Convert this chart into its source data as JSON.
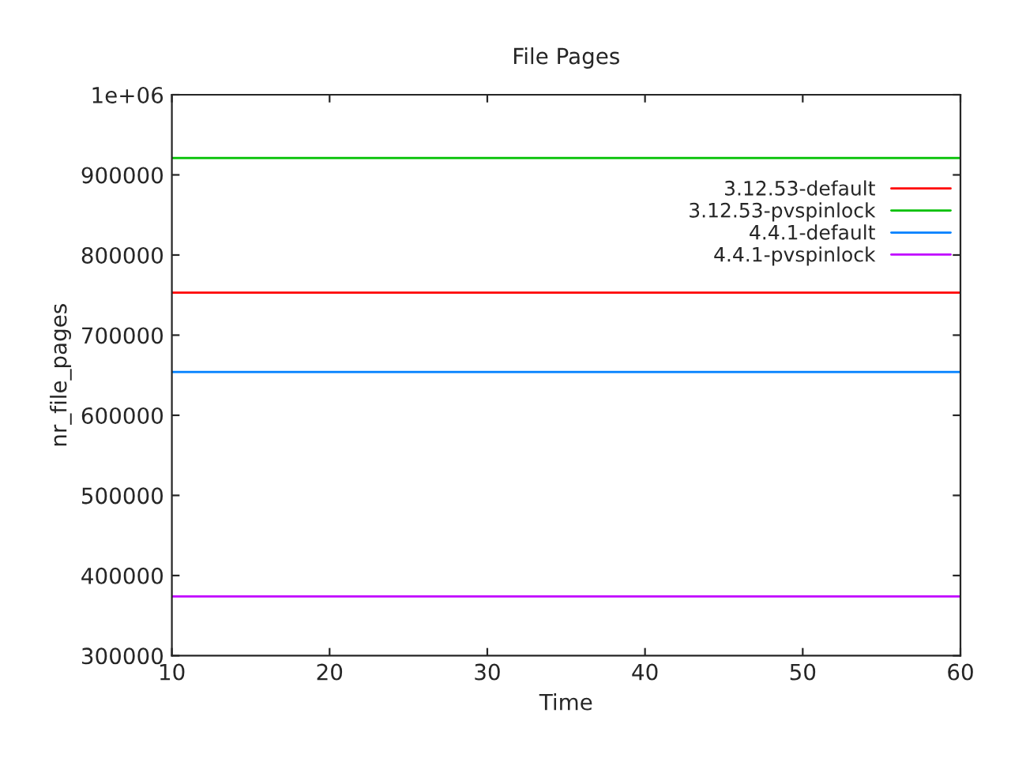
{
  "chart_data": {
    "type": "line",
    "title": "File Pages",
    "xlabel": "Time",
    "ylabel": "nr_file_pages",
    "x": [
      10,
      60
    ],
    "series": [
      {
        "name": "3.12.53-default",
        "color": "#ff0000",
        "values": [
          753000,
          753000
        ]
      },
      {
        "name": "3.12.53-pvspinlock",
        "color": "#00c000",
        "values": [
          921000,
          921000
        ]
      },
      {
        "name": "4.4.1-default",
        "color": "#0080ff",
        "values": [
          654000,
          654000
        ]
      },
      {
        "name": "4.4.1-pvspinlock",
        "color": "#c000ff",
        "values": [
          374000,
          374000
        ]
      }
    ],
    "xlim": [
      10,
      60
    ],
    "xticks": [
      10,
      20,
      30,
      40,
      50,
      60
    ],
    "ylim": [
      300000,
      1000000
    ],
    "yticks": [
      300000,
      400000,
      500000,
      600000,
      700000,
      800000,
      900000,
      {
        "value": 1000000,
        "label": "1e+06"
      }
    ],
    "grid": false,
    "legend": "top right",
    "marker": "none",
    "line_style": "solid"
  }
}
